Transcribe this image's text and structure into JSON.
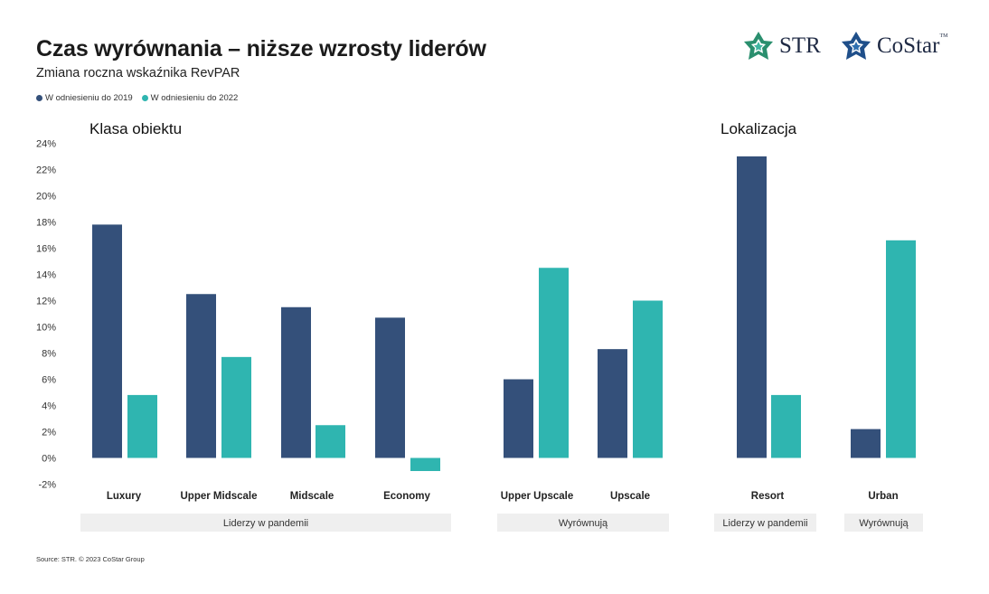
{
  "header": {
    "title": "Czas wyrównania – niższe wzrosty liderów",
    "subtitle": "Zmiana roczna wskaźnika RevPAR"
  },
  "legend": [
    {
      "label": "W odniesieniu do 2019",
      "color": "#34507a"
    },
    {
      "label": "W odniesieniu do 2022",
      "color": "#2fb5b0"
    }
  ],
  "sections": {
    "left": "Klasa obiektu",
    "right": "Lokalizacja"
  },
  "logos": {
    "str": "STR",
    "costar": "CoStar",
    "costar_tm": "TM"
  },
  "source": "Source: STR. © 2023 CoStar Group",
  "chart_data": {
    "type": "bar",
    "ylim": [
      -2,
      24
    ],
    "yticks": [
      -2,
      0,
      2,
      4,
      6,
      8,
      10,
      12,
      14,
      16,
      18,
      20,
      22,
      24
    ],
    "ytick_labels": [
      "-2%",
      "0%",
      "2%",
      "4%",
      "6%",
      "8%",
      "10%",
      "12%",
      "14%",
      "16%",
      "18%",
      "20%",
      "22%",
      "24%"
    ],
    "categories": [
      "Luxury",
      "Upper Midscale",
      "Midscale",
      "Economy",
      "Upper Upscale",
      "Upscale",
      "Resort",
      "Urban"
    ],
    "series": [
      {
        "name": "W odniesieniu do 2019",
        "color": "#34507a",
        "values": [
          17.8,
          12.5,
          11.5,
          10.7,
          6.0,
          8.3,
          23.0,
          2.2
        ]
      },
      {
        "name": "W odniesieniu do 2022",
        "color": "#2fb5b0",
        "values": [
          4.8,
          7.7,
          2.5,
          -1.0,
          14.5,
          12.0,
          4.8,
          16.6
        ]
      }
    ],
    "groups": [
      {
        "label": "Liderzy w pandemii",
        "categories": [
          "Luxury",
          "Upper Midscale",
          "Midscale",
          "Economy"
        ]
      },
      {
        "label": "Wyrównują",
        "categories": [
          "Upper Upscale",
          "Upscale"
        ]
      },
      {
        "label": "Liderzy w pandemii",
        "categories": [
          "Resort"
        ]
      },
      {
        "label": "Wyrównują",
        "categories": [
          "Urban"
        ]
      }
    ]
  }
}
